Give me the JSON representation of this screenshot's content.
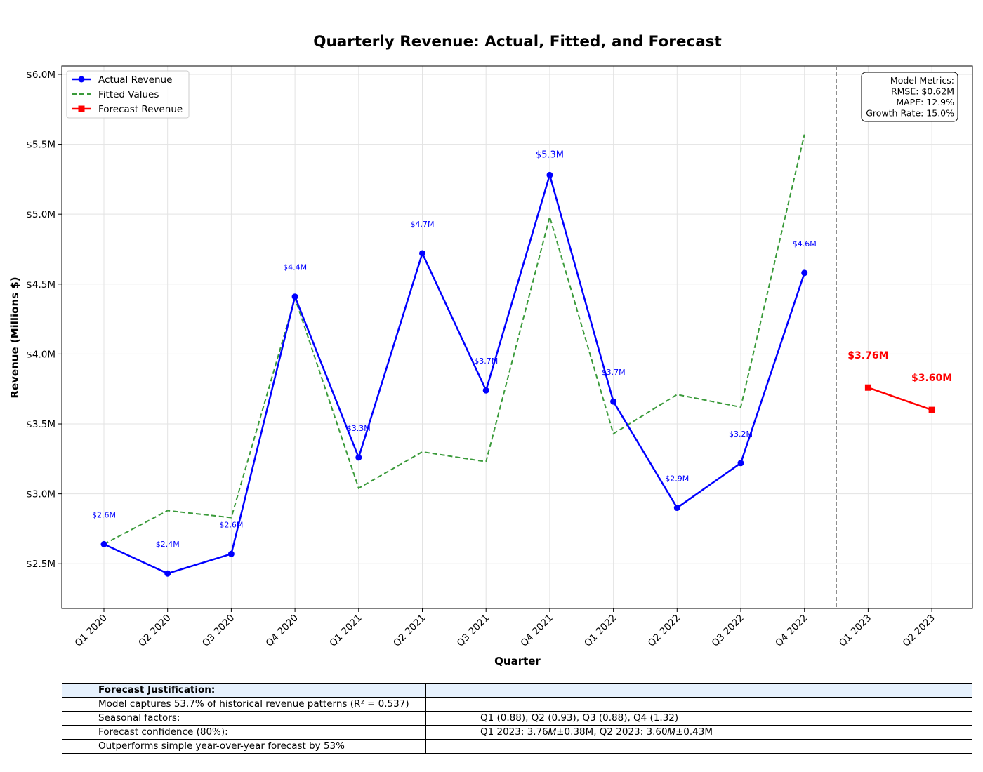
{
  "chart_data": {
    "type": "line",
    "title": "Quarterly Revenue: Actual, Fitted, and Forecast",
    "xlabel": "Quarter",
    "ylabel": "Revenue (Millions $)",
    "ylim": [
      2.18,
      6.06
    ],
    "yticks": [
      2.5,
      3.0,
      3.5,
      4.0,
      4.5,
      5.0,
      5.5,
      6.0
    ],
    "ytick_labels": [
      "$2.5M",
      "$3.0M",
      "$3.5M",
      "$4.0M",
      "$4.5M",
      "$5.0M",
      "$5.5M",
      "$6.0M"
    ],
    "categories": [
      "Q1 2020",
      "Q2 2020",
      "Q3 2020",
      "Q4 2020",
      "Q1 2021",
      "Q2 2021",
      "Q3 2021",
      "Q4 2021",
      "Q1 2022",
      "Q2 2022",
      "Q3 2022",
      "Q4 2022",
      "Q1 2023",
      "Q2 2023"
    ],
    "grid": true,
    "legend_position": "top-left",
    "forecast_divider_after": "Q4 2022",
    "series": [
      {
        "name": "Actual Revenue",
        "color": "#0000ff",
        "style": "solid-circle",
        "x": [
          "Q1 2020",
          "Q2 2020",
          "Q3 2020",
          "Q4 2020",
          "Q1 2021",
          "Q2 2021",
          "Q3 2021",
          "Q4 2021",
          "Q1 2022",
          "Q2 2022",
          "Q3 2022",
          "Q4 2022"
        ],
        "values": [
          2.64,
          2.43,
          2.57,
          4.41,
          3.26,
          4.72,
          3.74,
          5.28,
          3.66,
          2.9,
          3.22,
          4.58
        ],
        "labels": [
          "$2.6M",
          "$2.4M",
          "$2.6M",
          "$4.4M",
          "$3.3M",
          "$4.7M",
          "$3.7M",
          "$5.3M",
          "$3.7M",
          "$2.9M",
          "$3.2M",
          "$4.6M"
        ]
      },
      {
        "name": "Fitted Values",
        "color": "#3a9a3a",
        "style": "dashed",
        "x": [
          "Q1 2020",
          "Q2 2020",
          "Q3 2020",
          "Q4 2020",
          "Q1 2021",
          "Q2 2021",
          "Q3 2021",
          "Q4 2021",
          "Q1 2022",
          "Q2 2022",
          "Q3 2022",
          "Q4 2022"
        ],
        "values": [
          2.64,
          2.88,
          2.83,
          4.4,
          3.04,
          3.3,
          3.23,
          4.98,
          3.43,
          3.71,
          3.62,
          5.57
        ]
      },
      {
        "name": "Forecast Revenue",
        "color": "#ff0000",
        "style": "solid-square",
        "x": [
          "Q1 2023",
          "Q2 2023"
        ],
        "values": [
          3.76,
          3.6
        ],
        "labels": [
          "$3.76M",
          "$3.60M"
        ]
      }
    ],
    "metrics_box": {
      "lines": [
        "Model Metrics:",
        "RMSE: $0.62M",
        "MAPE: 12.9%",
        "Growth Rate: 15.0%"
      ]
    }
  },
  "table": {
    "header": "Forecast Justification:",
    "rows": [
      {
        "label": "Model captures 53.7% of historical revenue patterns (R² = 0.537)",
        "value": ""
      },
      {
        "label": "Seasonal factors:",
        "value": "Q1 (0.88), Q2 (0.93), Q3 (0.88), Q4 (1.32)"
      },
      {
        "label": "Forecast confidence (80%):",
        "value": "Q1 2023: 3.76𝑀±0.38M, Q2 2023: 3.60𝑀±0.43M"
      },
      {
        "label": "Outperforms simple year-over-year forecast by 53%",
        "value": ""
      }
    ]
  }
}
